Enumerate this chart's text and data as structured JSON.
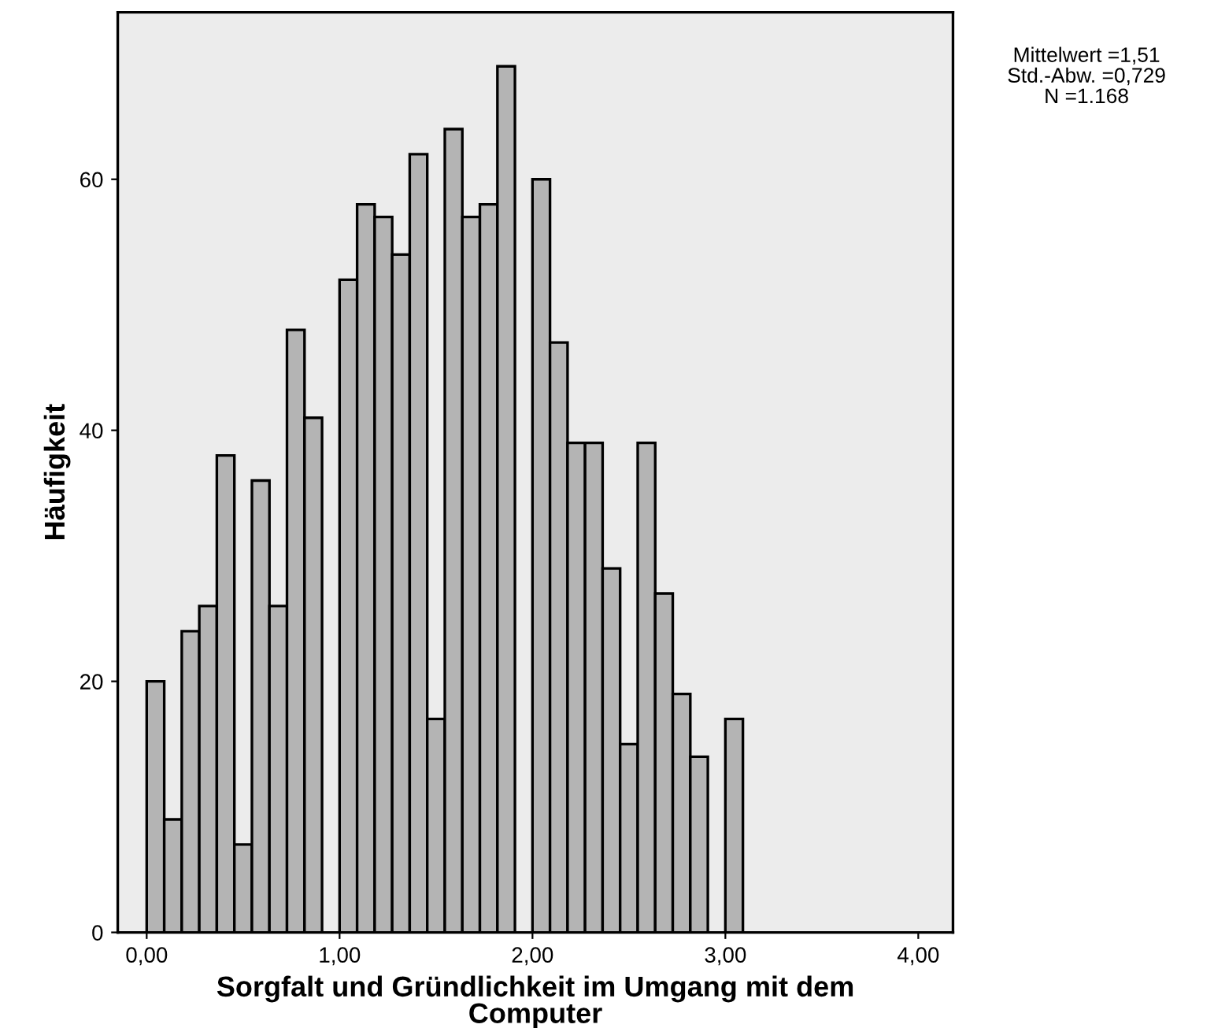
{
  "chart_data": {
    "type": "histogram",
    "xlabel": "Sorgfalt und Gründlichkeit im Umgang mit dem\nComputer",
    "ylabel": "Häufigkeit",
    "annotations": [
      "Mittelwert =1,51",
      "Std.-Abw. =0,729",
      "N =1.168"
    ],
    "bins": [
      0,
      0.0909,
      0.1818,
      0.2727,
      0.3636,
      0.4545,
      0.5455,
      0.6364,
      0.7273,
      0.8182,
      0.9091,
      1,
      1.0909,
      1.1818,
      1.2727,
      1.3636,
      1.4545,
      1.5455,
      1.6364,
      1.7273,
      1.8182,
      1.9091,
      2,
      2.0909,
      2.1818,
      2.2727,
      2.3636,
      2.4545,
      2.5455,
      2.6364,
      2.7273,
      2.8182,
      2.9091,
      3,
      3.0909
    ],
    "values": [
      20,
      9,
      24,
      26,
      38,
      7,
      36,
      26,
      48,
      41,
      0,
      52,
      58,
      57,
      54,
      62,
      17,
      64,
      57,
      58,
      69,
      0,
      60,
      47,
      39,
      39,
      29,
      15,
      39,
      27,
      19,
      14,
      0,
      17
    ],
    "color": "#b4b4b4",
    "xlim": [
      -0.15,
      4.18
    ],
    "ylim": [
      0,
      73.3
    ],
    "xticks": [
      {
        "value": 0,
        "label": "0,00"
      },
      {
        "value": 1,
        "label": "1,00"
      },
      {
        "value": 2,
        "label": "2,00"
      },
      {
        "value": 3,
        "label": "3,00"
      },
      {
        "value": 4,
        "label": "4,00"
      }
    ],
    "yticks": [
      0,
      20,
      40,
      60
    ],
    "grid": false
  }
}
